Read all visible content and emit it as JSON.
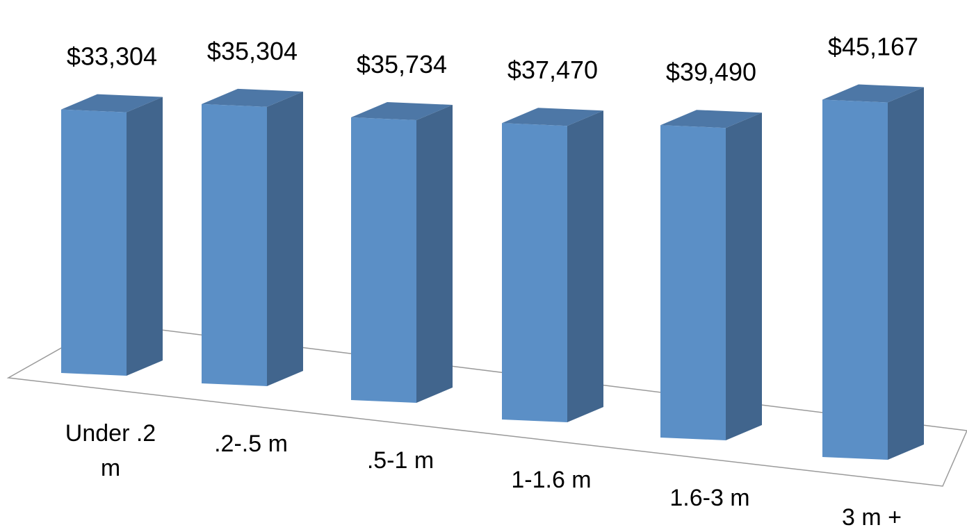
{
  "chart_data": {
    "type": "bar",
    "three_d": true,
    "categories": [
      "Under .2 m",
      ".2-.5 m",
      ".5-1 m",
      "1-1.6 m",
      "1.6-3 m",
      "3 m +"
    ],
    "values": [
      33304,
      35304,
      35734,
      37470,
      39490,
      45167
    ],
    "value_labels": [
      "$33,304",
      "$35,304",
      "$35,734",
      "$37,470",
      "$39,490",
      "$45,167"
    ],
    "category_label_lines": [
      [
        "Under .2",
        "m"
      ],
      [
        ".2-.5 m"
      ],
      [
        ".5-1 m"
      ],
      [
        "1-1.6 m"
      ],
      [
        "1.6-3 m"
      ],
      [
        "3 m +"
      ]
    ],
    "title": "",
    "xlabel": "",
    "ylabel": "",
    "grid": false,
    "legend": "none",
    "colors": {
      "front": "#5b8fc6",
      "side": "#41658d",
      "top": "#4d77a6",
      "floor_stroke": "#9a9a9a"
    }
  }
}
